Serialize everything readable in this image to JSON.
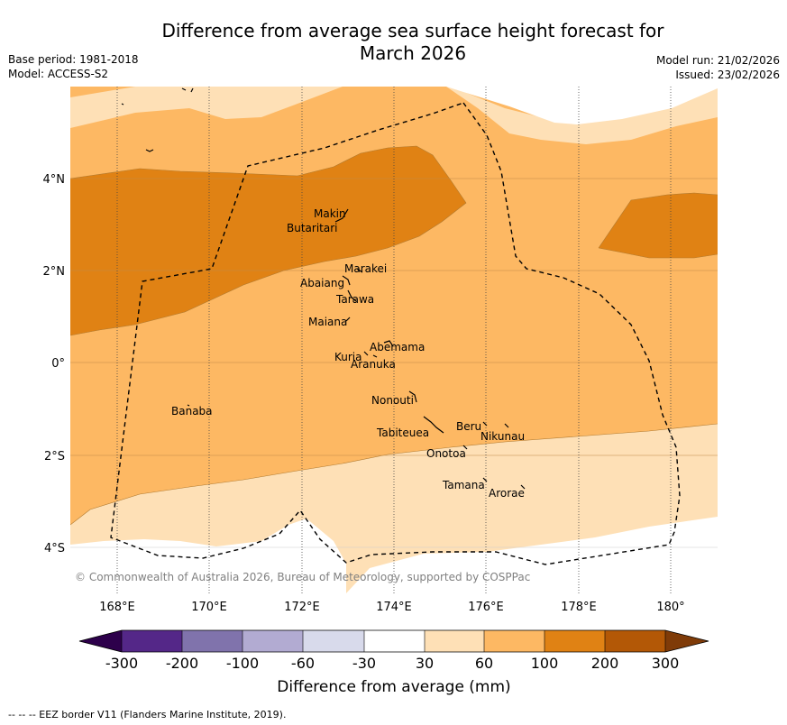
{
  "header": {
    "title_line1": "Difference from average sea surface height forecast for",
    "title_line2": "March 2026",
    "base_period": "Base period: 1981-2018",
    "model": "Model: ACCESS-S2",
    "model_run": "Model run: 21/02/2026",
    "issued": "Issued: 23/02/2026"
  },
  "axes": {
    "lon_labels": [
      "168°E",
      "170°E",
      "172°E",
      "174°E",
      "176°E",
      "178°E",
      "180°"
    ],
    "lat_labels": [
      "4°N",
      "2°N",
      "0°",
      "2°S",
      "4°S"
    ]
  },
  "places": [
    {
      "name": "Makin"
    },
    {
      "name": "Butaritari"
    },
    {
      "name": "Marakei"
    },
    {
      "name": "Abaiang"
    },
    {
      "name": "Tarawa"
    },
    {
      "name": "Maiana"
    },
    {
      "name": "Abemama"
    },
    {
      "name": "Kuria"
    },
    {
      "name": "Aranuka"
    },
    {
      "name": "Banaba"
    },
    {
      "name": "Nonouti"
    },
    {
      "name": "Beru"
    },
    {
      "name": "Tabiteuea"
    },
    {
      "name": "Nikunau"
    },
    {
      "name": "Onotoa"
    },
    {
      "name": "Tamana"
    },
    {
      "name": "Arorae"
    }
  ],
  "copyright": "© Commonwealth of Australia 2026, Bureau of Meteorology, supported by COSPPac",
  "colorbar": {
    "label": "Difference from average (mm)",
    "ticks": [
      "-300",
      "-200",
      "-100",
      "-60",
      "-30",
      "30",
      "60",
      "100",
      "200",
      "300"
    ],
    "colors": {
      "lt_m300": "#2d004b",
      "m300_m200": "#542788",
      "m200_m100": "#8073ac",
      "m100_m60": "#b2abd2",
      "m60_m30": "#d8daeb",
      "m30_30": "#ffffff",
      "30_60": "#fee0b6",
      "60_100": "#fdb863",
      "100_200": "#e08214",
      "200_300": "#b35806",
      "gt_300": "#7f3b08"
    }
  },
  "footer": "-- -- -- EEZ border V11 (Flanders Marine Institute, 2019)."
}
